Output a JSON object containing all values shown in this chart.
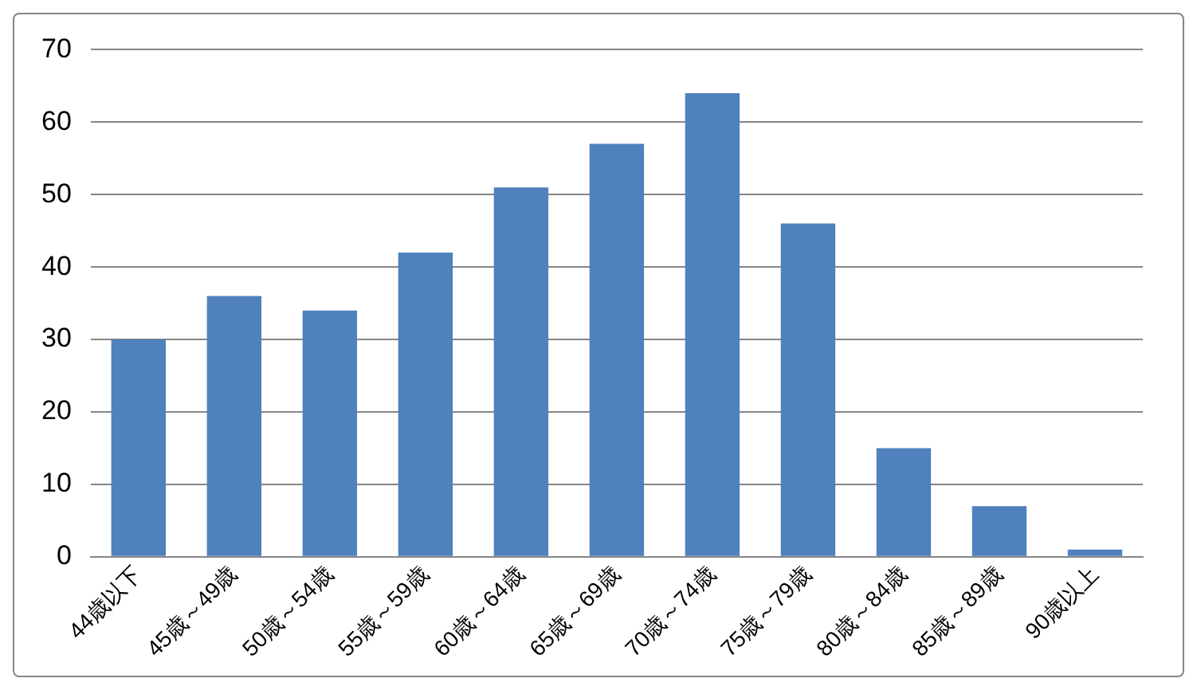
{
  "chart_data": {
    "type": "bar",
    "categories": [
      "44歳以下",
      "45歳～49歳",
      "50歳～54歳",
      "55歳～59歳",
      "60歳～64歳",
      "65歳～69歳",
      "70歳～74歳",
      "75歳～79歳",
      "80歳～84歳",
      "85歳～89歳",
      "90歳以上"
    ],
    "values": [
      30,
      36,
      34,
      42,
      51,
      57,
      64,
      46,
      15,
      7,
      1
    ],
    "color": "#4f81bd",
    "ylim": [
      0,
      70
    ],
    "yticks": [
      0,
      10,
      20,
      30,
      40,
      50,
      60,
      70
    ],
    "grid": "y",
    "legend": false
  }
}
